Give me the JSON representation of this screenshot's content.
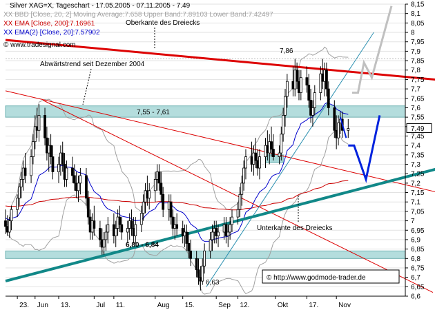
{
  "header": {
    "line1": "Silver XAG=X, Tageschart - 17.05.2005 - 07.11.2005 - 7.49",
    "line2": "XX BBD [Close, 20, 2] Moving Average:7.658 Upper Band:7.89103 Lower Band:7.42497",
    "line3": "XX EMA [Close, 200]:7.16961",
    "line4": "XX EMA(2) [Close, 20]:7.57902",
    "line5": "© www.tradesignal.com"
  },
  "watermark": "© http://www.godmode-trader.de",
  "colors": {
    "candle": "#000000",
    "bollinger": "#a0a0a0",
    "ema200": "#cc0000",
    "ema20": "#0000cc",
    "upper_triangle": "#dd0000",
    "lower_triangle": "#118888",
    "zone": "#a8d8d8",
    "projection_blue": "#0022dd",
    "projection_gray": "#c0c0c0"
  },
  "chart_data": {
    "type": "candlestick",
    "title": "Silver XAG=X, Tageschart - 17.05.2005 - 07.11.2005 - 7.49",
    "x_ticks": [
      {
        "label": "23.",
        "date": "2005-05-23"
      },
      {
        "label": "Jun",
        "date": "2005-06-01"
      },
      {
        "label": "13.",
        "date": "2005-06-13"
      },
      {
        "label": "Jul",
        "date": "2005-07-01"
      },
      {
        "label": "11.",
        "date": "2005-07-11"
      },
      {
        "label": "Aug",
        "date": "2005-08-01"
      },
      {
        "label": "15.",
        "date": "2005-08-15"
      },
      {
        "label": "Sep",
        "date": "2005-09-01"
      },
      {
        "label": "12.",
        "date": "2005-09-12"
      },
      {
        "label": "Okt",
        "date": "2005-10-01"
      },
      {
        "label": "17.",
        "date": "2005-10-17"
      },
      {
        "label": "Nov",
        "date": "2005-11-01"
      }
    ],
    "ylim": [
      6.6,
      8.15
    ],
    "y_ticks": [
      "8,15",
      "8,1",
      "8,05",
      "8",
      "7,95",
      "7,9",
      "7,85",
      "7,8",
      "7,75",
      "7,7",
      "7,65",
      "7,6",
      "7,55",
      "7,5",
      "7,45",
      "7,4",
      "7,35",
      "7,3",
      "7,25",
      "7,2",
      "7,15",
      "7,1",
      "7,05",
      "7",
      "6,95",
      "6,9",
      "6,85",
      "6,8",
      "6,75",
      "6,7",
      "6,65",
      "6,6"
    ],
    "last_price_label": "7,49",
    "last_price": 7.49,
    "zones": [
      {
        "label": "7,55 - 7,61",
        "low": 7.55,
        "high": 7.61
      },
      {
        "label": "6,80 - 6,84",
        "low": 6.8,
        "high": 6.84
      }
    ],
    "annotations": [
      {
        "text": "Oberkante des Dreiecks"
      },
      {
        "text": "Abwärtstrend seit Dezember 2004"
      },
      {
        "text": "Unterkante des Dreiecks"
      },
      {
        "text": "7,86",
        "value": 7.86
      },
      {
        "text": "6,63",
        "value": 6.63
      }
    ],
    "candles": [
      {
        "date": "2005-05-17",
        "o": 7.0,
        "h": 7.06,
        "l": 6.93,
        "c": 6.97
      },
      {
        "date": "2005-05-18",
        "o": 6.97,
        "h": 7.03,
        "l": 6.92,
        "c": 6.94
      },
      {
        "date": "2005-05-19",
        "o": 6.94,
        "h": 7.02,
        "l": 6.91,
        "c": 7.0
      },
      {
        "date": "2005-05-20",
        "o": 7.0,
        "h": 7.08,
        "l": 6.95,
        "c": 7.06
      },
      {
        "date": "2005-05-23",
        "o": 7.06,
        "h": 7.14,
        "l": 7.02,
        "c": 7.12
      },
      {
        "date": "2005-05-24",
        "o": 7.12,
        "h": 7.2,
        "l": 7.08,
        "c": 7.18
      },
      {
        "date": "2005-05-25",
        "o": 7.18,
        "h": 7.26,
        "l": 7.12,
        "c": 7.22
      },
      {
        "date": "2005-05-26",
        "o": 7.22,
        "h": 7.32,
        "l": 7.16,
        "c": 7.28
      },
      {
        "date": "2005-05-27",
        "o": 7.28,
        "h": 7.36,
        "l": 7.2,
        "c": 7.24
      },
      {
        "date": "2005-05-30",
        "o": 7.24,
        "h": 7.38,
        "l": 7.2,
        "c": 7.34
      },
      {
        "date": "2005-05-31",
        "o": 7.34,
        "h": 7.46,
        "l": 7.3,
        "c": 7.42
      },
      {
        "date": "2005-06-01",
        "o": 7.42,
        "h": 7.56,
        "l": 7.38,
        "c": 7.5
      },
      {
        "date": "2005-06-02",
        "o": 7.5,
        "h": 7.6,
        "l": 7.44,
        "c": 7.48
      },
      {
        "date": "2005-06-03",
        "o": 7.48,
        "h": 7.62,
        "l": 7.42,
        "c": 7.56
      },
      {
        "date": "2005-06-06",
        "o": 7.56,
        "h": 7.6,
        "l": 7.4,
        "c": 7.44
      },
      {
        "date": "2005-06-07",
        "o": 7.44,
        "h": 7.5,
        "l": 7.32,
        "c": 7.36
      },
      {
        "date": "2005-06-08",
        "o": 7.36,
        "h": 7.44,
        "l": 7.26,
        "c": 7.4
      },
      {
        "date": "2005-06-09",
        "o": 7.4,
        "h": 7.46,
        "l": 7.3,
        "c": 7.34
      },
      {
        "date": "2005-06-10",
        "o": 7.34,
        "h": 7.4,
        "l": 7.22,
        "c": 7.26
      },
      {
        "date": "2005-06-13",
        "o": 7.26,
        "h": 7.34,
        "l": 7.2,
        "c": 7.3
      },
      {
        "date": "2005-06-14",
        "o": 7.3,
        "h": 7.4,
        "l": 7.24,
        "c": 7.36
      },
      {
        "date": "2005-06-15",
        "o": 7.36,
        "h": 7.42,
        "l": 7.26,
        "c": 7.3
      },
      {
        "date": "2005-06-16",
        "o": 7.3,
        "h": 7.36,
        "l": 7.18,
        "c": 7.22
      },
      {
        "date": "2005-06-17",
        "o": 7.22,
        "h": 7.32,
        "l": 7.18,
        "c": 7.28
      },
      {
        "date": "2005-06-20",
        "o": 7.28,
        "h": 7.34,
        "l": 7.2,
        "c": 7.24
      },
      {
        "date": "2005-06-21",
        "o": 7.24,
        "h": 7.3,
        "l": 7.16,
        "c": 7.2
      },
      {
        "date": "2005-06-22",
        "o": 7.2,
        "h": 7.26,
        "l": 7.12,
        "c": 7.16
      },
      {
        "date": "2005-06-23",
        "o": 7.16,
        "h": 7.24,
        "l": 7.1,
        "c": 7.2
      },
      {
        "date": "2005-06-24",
        "o": 7.2,
        "h": 7.28,
        "l": 7.14,
        "c": 7.24
      },
      {
        "date": "2005-06-27",
        "o": 7.24,
        "h": 7.28,
        "l": 7.08,
        "c": 7.12
      },
      {
        "date": "2005-06-28",
        "o": 7.12,
        "h": 7.16,
        "l": 6.98,
        "c": 7.02
      },
      {
        "date": "2005-06-29",
        "o": 7.02,
        "h": 7.06,
        "l": 6.9,
        "c": 6.94
      },
      {
        "date": "2005-06-30",
        "o": 6.94,
        "h": 7.04,
        "l": 6.9,
        "c": 7.0
      },
      {
        "date": "2005-07-01",
        "o": 7.0,
        "h": 7.08,
        "l": 6.92,
        "c": 6.96
      },
      {
        "date": "2005-07-04",
        "o": 6.96,
        "h": 7.0,
        "l": 6.86,
        "c": 6.9
      },
      {
        "date": "2005-07-05",
        "o": 6.9,
        "h": 6.96,
        "l": 6.82,
        "c": 6.86
      },
      {
        "date": "2005-07-06",
        "o": 6.86,
        "h": 6.94,
        "l": 6.82,
        "c": 6.9
      },
      {
        "date": "2005-07-07",
        "o": 6.9,
        "h": 6.98,
        "l": 6.84,
        "c": 6.94
      },
      {
        "date": "2005-07-08",
        "o": 6.94,
        "h": 7.02,
        "l": 6.88,
        "c": 6.98
      },
      {
        "date": "2005-07-11",
        "o": 6.98,
        "h": 7.04,
        "l": 6.88,
        "c": 6.92
      },
      {
        "date": "2005-07-12",
        "o": 6.92,
        "h": 7.0,
        "l": 6.86,
        "c": 6.96
      },
      {
        "date": "2005-07-13",
        "o": 6.96,
        "h": 7.06,
        "l": 6.92,
        "c": 7.02
      },
      {
        "date": "2005-07-14",
        "o": 7.02,
        "h": 7.08,
        "l": 6.94,
        "c": 6.98
      },
      {
        "date": "2005-07-15",
        "o": 6.98,
        "h": 7.02,
        "l": 6.9,
        "c": 6.94
      },
      {
        "date": "2005-07-18",
        "o": 6.94,
        "h": 7.0,
        "l": 6.88,
        "c": 6.96
      },
      {
        "date": "2005-07-19",
        "o": 6.96,
        "h": 7.04,
        "l": 6.9,
        "c": 7.0
      },
      {
        "date": "2005-07-20",
        "o": 7.0,
        "h": 7.06,
        "l": 6.92,
        "c": 6.96
      },
      {
        "date": "2005-07-21",
        "o": 6.96,
        "h": 7.02,
        "l": 6.88,
        "c": 6.92
      },
      {
        "date": "2005-07-22",
        "o": 6.92,
        "h": 7.02,
        "l": 6.88,
        "c": 6.98
      },
      {
        "date": "2005-07-25",
        "o": 6.98,
        "h": 7.08,
        "l": 6.94,
        "c": 7.04
      },
      {
        "date": "2005-07-26",
        "o": 7.04,
        "h": 7.14,
        "l": 7.0,
        "c": 7.1
      },
      {
        "date": "2005-07-27",
        "o": 7.1,
        "h": 7.2,
        "l": 7.04,
        "c": 7.16
      },
      {
        "date": "2005-07-28",
        "o": 7.16,
        "h": 7.24,
        "l": 7.08,
        "c": 7.12
      },
      {
        "date": "2005-07-29",
        "o": 7.12,
        "h": 7.2,
        "l": 7.06,
        "c": 7.16
      },
      {
        "date": "2005-08-01",
        "o": 7.16,
        "h": 7.26,
        "l": 7.1,
        "c": 7.22
      },
      {
        "date": "2005-08-02",
        "o": 7.22,
        "h": 7.3,
        "l": 7.16,
        "c": 7.26
      },
      {
        "date": "2005-08-03",
        "o": 7.26,
        "h": 7.3,
        "l": 7.16,
        "c": 7.2
      },
      {
        "date": "2005-08-04",
        "o": 7.2,
        "h": 7.26,
        "l": 7.1,
        "c": 7.14
      },
      {
        "date": "2005-08-05",
        "o": 7.14,
        "h": 7.18,
        "l": 7.02,
        "c": 7.06
      },
      {
        "date": "2005-08-08",
        "o": 7.06,
        "h": 7.14,
        "l": 7.0,
        "c": 7.1
      },
      {
        "date": "2005-08-09",
        "o": 7.1,
        "h": 7.14,
        "l": 6.98,
        "c": 7.02
      },
      {
        "date": "2005-08-10",
        "o": 7.02,
        "h": 7.06,
        "l": 6.92,
        "c": 6.96
      },
      {
        "date": "2005-08-11",
        "o": 6.96,
        "h": 7.02,
        "l": 6.9,
        "c": 6.98
      },
      {
        "date": "2005-08-12",
        "o": 6.98,
        "h": 7.04,
        "l": 6.92,
        "c": 6.96
      },
      {
        "date": "2005-08-15",
        "o": 6.96,
        "h": 7.0,
        "l": 6.88,
        "c": 6.92
      },
      {
        "date": "2005-08-16",
        "o": 6.92,
        "h": 6.98,
        "l": 6.86,
        "c": 6.94
      },
      {
        "date": "2005-08-17",
        "o": 6.94,
        "h": 6.98,
        "l": 6.84,
        "c": 6.88
      },
      {
        "date": "2005-08-18",
        "o": 6.88,
        "h": 6.94,
        "l": 6.8,
        "c": 6.84
      },
      {
        "date": "2005-08-19",
        "o": 6.84,
        "h": 6.9,
        "l": 6.76,
        "c": 6.8
      },
      {
        "date": "2005-08-22",
        "o": 6.8,
        "h": 6.84,
        "l": 6.7,
        "c": 6.74
      },
      {
        "date": "2005-08-23",
        "o": 6.74,
        "h": 6.8,
        "l": 6.66,
        "c": 6.7
      },
      {
        "date": "2005-08-24",
        "o": 6.7,
        "h": 6.76,
        "l": 6.63,
        "c": 6.68
      },
      {
        "date": "2005-08-25",
        "o": 6.68,
        "h": 6.8,
        "l": 6.66,
        "c": 6.76
      },
      {
        "date": "2005-08-26",
        "o": 6.76,
        "h": 6.88,
        "l": 6.72,
        "c": 6.84
      },
      {
        "date": "2005-08-29",
        "o": 6.84,
        "h": 6.94,
        "l": 6.8,
        "c": 6.9
      },
      {
        "date": "2005-08-30",
        "o": 6.9,
        "h": 6.98,
        "l": 6.84,
        "c": 6.94
      },
      {
        "date": "2005-08-31",
        "o": 6.94,
        "h": 7.0,
        "l": 6.88,
        "c": 6.96
      },
      {
        "date": "2005-09-01",
        "o": 6.96,
        "h": 7.0,
        "l": 6.88,
        "c": 6.92
      },
      {
        "date": "2005-09-02",
        "o": 6.92,
        "h": 6.98,
        "l": 6.86,
        "c": 6.94
      },
      {
        "date": "2005-09-05",
        "o": 6.94,
        "h": 7.02,
        "l": 6.9,
        "c": 6.98
      },
      {
        "date": "2005-09-06",
        "o": 6.98,
        "h": 7.02,
        "l": 6.88,
        "c": 6.92
      },
      {
        "date": "2005-09-07",
        "o": 6.92,
        "h": 6.98,
        "l": 6.86,
        "c": 6.94
      },
      {
        "date": "2005-09-08",
        "o": 6.94,
        "h": 7.02,
        "l": 6.9,
        "c": 6.98
      },
      {
        "date": "2005-09-09",
        "o": 6.98,
        "h": 7.06,
        "l": 6.94,
        "c": 7.02
      },
      {
        "date": "2005-09-12",
        "o": 7.02,
        "h": 7.1,
        "l": 6.98,
        "c": 7.06
      },
      {
        "date": "2005-09-13",
        "o": 7.06,
        "h": 7.18,
        "l": 7.02,
        "c": 7.14
      },
      {
        "date": "2005-09-14",
        "o": 7.14,
        "h": 7.24,
        "l": 7.08,
        "c": 7.2
      },
      {
        "date": "2005-09-15",
        "o": 7.2,
        "h": 7.32,
        "l": 7.16,
        "c": 7.28
      },
      {
        "date": "2005-09-16",
        "o": 7.28,
        "h": 7.38,
        "l": 7.22,
        "c": 7.34
      },
      {
        "date": "2005-09-19",
        "o": 7.34,
        "h": 7.42,
        "l": 7.26,
        "c": 7.3
      },
      {
        "date": "2005-09-20",
        "o": 7.3,
        "h": 7.4,
        "l": 7.24,
        "c": 7.36
      },
      {
        "date": "2005-09-21",
        "o": 7.36,
        "h": 7.44,
        "l": 7.28,
        "c": 7.32
      },
      {
        "date": "2005-09-22",
        "o": 7.32,
        "h": 7.38,
        "l": 7.24,
        "c": 7.28
      },
      {
        "date": "2005-09-23",
        "o": 7.28,
        "h": 7.38,
        "l": 7.22,
        "c": 7.34
      },
      {
        "date": "2005-09-26",
        "o": 7.34,
        "h": 7.44,
        "l": 7.28,
        "c": 7.4
      },
      {
        "date": "2005-09-27",
        "o": 7.4,
        "h": 7.48,
        "l": 7.32,
        "c": 7.36
      },
      {
        "date": "2005-09-28",
        "o": 7.36,
        "h": 7.46,
        "l": 7.3,
        "c": 7.42
      },
      {
        "date": "2005-09-29",
        "o": 7.42,
        "h": 7.5,
        "l": 7.34,
        "c": 7.38
      },
      {
        "date": "2005-09-30",
        "o": 7.38,
        "h": 7.46,
        "l": 7.32,
        "c": 7.34
      },
      {
        "date": "2005-10-03",
        "o": 7.34,
        "h": 7.4,
        "l": 7.3,
        "c": 7.36
      },
      {
        "date": "2005-10-04",
        "o": 7.36,
        "h": 7.5,
        "l": 7.32,
        "c": 7.46
      },
      {
        "date": "2005-10-05",
        "o": 7.46,
        "h": 7.6,
        "l": 7.42,
        "c": 7.56
      },
      {
        "date": "2005-10-06",
        "o": 7.56,
        "h": 7.7,
        "l": 7.5,
        "c": 7.66
      },
      {
        "date": "2005-10-07",
        "o": 7.66,
        "h": 7.78,
        "l": 7.6,
        "c": 7.74
      },
      {
        "date": "2005-10-10",
        "o": 7.74,
        "h": 7.82,
        "l": 7.66,
        "c": 7.7
      },
      {
        "date": "2005-10-11",
        "o": 7.7,
        "h": 7.86,
        "l": 7.66,
        "c": 7.8
      },
      {
        "date": "2005-10-12",
        "o": 7.8,
        "h": 7.84,
        "l": 7.7,
        "c": 7.74
      },
      {
        "date": "2005-10-13",
        "o": 7.74,
        "h": 7.8,
        "l": 7.64,
        "c": 7.68
      },
      {
        "date": "2005-10-14",
        "o": 7.68,
        "h": 7.8,
        "l": 7.64,
        "c": 7.76
      },
      {
        "date": "2005-10-17",
        "o": 7.76,
        "h": 7.82,
        "l": 7.68,
        "c": 7.72
      },
      {
        "date": "2005-10-18",
        "o": 7.72,
        "h": 7.78,
        "l": 7.6,
        "c": 7.64
      },
      {
        "date": "2005-10-19",
        "o": 7.64,
        "h": 7.7,
        "l": 7.52,
        "c": 7.56
      },
      {
        "date": "2005-10-20",
        "o": 7.56,
        "h": 7.64,
        "l": 7.5,
        "c": 7.6
      },
      {
        "date": "2005-10-21",
        "o": 7.6,
        "h": 7.72,
        "l": 7.56,
        "c": 7.68
      },
      {
        "date": "2005-10-24",
        "o": 7.68,
        "h": 7.82,
        "l": 7.64,
        "c": 7.78
      },
      {
        "date": "2005-10-25",
        "o": 7.78,
        "h": 7.86,
        "l": 7.7,
        "c": 7.74
      },
      {
        "date": "2005-10-26",
        "o": 7.74,
        "h": 7.84,
        "l": 7.66,
        "c": 7.8
      },
      {
        "date": "2005-10-27",
        "o": 7.8,
        "h": 7.84,
        "l": 7.66,
        "c": 7.7
      },
      {
        "date": "2005-10-28",
        "o": 7.7,
        "h": 7.74,
        "l": 7.56,
        "c": 7.6
      },
      {
        "date": "2005-10-31",
        "o": 7.6,
        "h": 7.64,
        "l": 7.44,
        "c": 7.48
      },
      {
        "date": "2005-11-01",
        "o": 7.48,
        "h": 7.56,
        "l": 7.38,
        "c": 7.44
      },
      {
        "date": "2005-11-02",
        "o": 7.44,
        "h": 7.56,
        "l": 7.4,
        "c": 7.52
      },
      {
        "date": "2005-11-03",
        "o": 7.52,
        "h": 7.58,
        "l": 7.46,
        "c": 7.54
      },
      {
        "date": "2005-11-04",
        "o": 7.54,
        "h": 7.58,
        "l": 7.44,
        "c": 7.48
      },
      {
        "date": "2005-11-07",
        "o": 7.48,
        "h": 7.54,
        "l": 7.44,
        "c": 7.49
      }
    ],
    "lines": {
      "upper_triangle": [
        [
          "2005-05-17",
          7.96
        ],
        [
          "2005-12-31",
          7.74
        ]
      ],
      "lower_triangle": [
        [
          "2005-05-17",
          6.68
        ],
        [
          "2005-12-31",
          7.3
        ]
      ],
      "downtrend_thin": [
        [
          "2005-05-17",
          7.69
        ],
        [
          "2005-12-31",
          7.13
        ]
      ],
      "trendline_thin_red": [
        [
          "2005-06-05",
          7.64
        ],
        [
          "2005-12-20",
          6.62
        ]
      ],
      "trendline_thin_teal": [
        [
          "2005-08-27",
          6.65
        ],
        [
          "2005-11-20",
          8.0
        ]
      ]
    },
    "projections": {
      "blue": [
        [
          "2005-11-07",
          7.4
        ],
        [
          "2005-11-10",
          7.4
        ],
        [
          "2005-11-16",
          7.22
        ],
        [
          "2005-11-23",
          7.56
        ]
      ],
      "blue_short": [
        [
          "2005-11-03",
          7.55
        ],
        [
          "2005-11-06",
          7.44
        ]
      ],
      "gray": [
        [
          "2005-11-09",
          7.68
        ],
        [
          "2005-11-12",
          7.68
        ],
        [
          "2005-11-15",
          7.84
        ],
        [
          "2005-11-19",
          7.76
        ],
        [
          "2005-11-29",
          8.14
        ]
      ]
    }
  }
}
